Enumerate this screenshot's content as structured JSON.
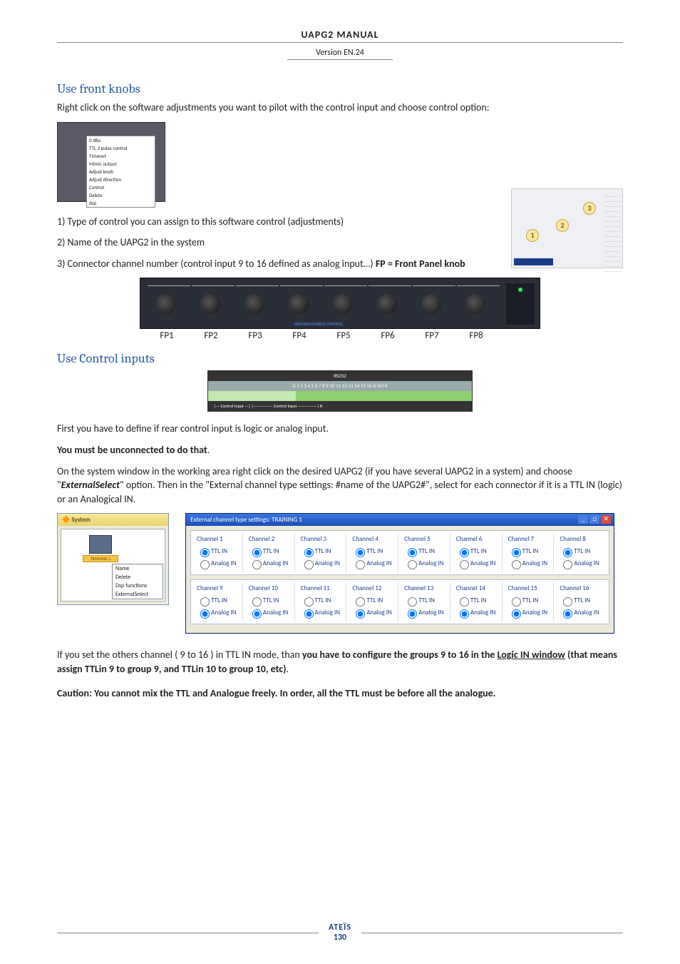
{
  "header": {
    "title": "UAPG2  MANUAL",
    "version": "Version EN.24"
  },
  "section1": {
    "heading": "Use front knobs",
    "intro": "Right click on the software adjustments you want to pilot with the control input and choose control option:",
    "ctx_sidebar1": "Delete",
    "ctx_sidebar2": "Dsp functions",
    "ctx_menu_items": [
      "0 dBu",
      "TTL 2 pulse control",
      "Timeout",
      "Mimic output",
      "Adjust knob",
      "Adjust direction",
      "Control",
      "Delete",
      "dsp"
    ],
    "bullets": [
      "1) Type of control you can assign to this software control (adjustments)",
      "2) Name of the UAPG2 in the system",
      "3) Connector channel number (control input 9 to 16 defined as analog input…) "
    ],
    "fp_bold": "FP = Front Panel knob",
    "right_callouts": [
      "1",
      "2",
      "3"
    ],
    "right_list": [
      "Ch 9",
      "Ch10",
      "Ch11",
      "Ch12",
      "Ch13",
      "Ch14",
      "Ch15",
      "Ch16",
      "FP1",
      "FP2",
      "FP3",
      "FP4",
      "FP5",
      "FP6",
      "FP7",
      "FP8"
    ],
    "knob_panel_label": "PROGRAMMABLE CONTROL",
    "fp_labels": [
      "FP1",
      "FP2",
      "FP3",
      "FP4",
      "FP5",
      "FP6",
      "FP7",
      "FP8"
    ]
  },
  "section2": {
    "heading": "Use Control inputs",
    "ci_top": "RS232",
    "ci_mid": "G   1   2   3   4   5      6   7   8   9  10 11 12 13 14 15 16   G   NO R",
    "ci_bot": "|— Control Input —|   |————— Control Input —————|        R",
    "para1": "First you have to define if rear control input is logic or analog input.",
    "para2_bold": "You must be unconnected to do that",
    "para2_rest": ".",
    "para3_pre": "On the system window in the working area right click on the desired UAPG2 (if you have several UAPG2 in a system) and choose \"",
    "para3_em": "ExternalSelect",
    "para3_post": "\"  option. Then in the \"External channel type settings: #name of the UAPG2#\", select for each connector if it is a TTL IN (logic) or an Analogical IN."
  },
  "system_window": {
    "title": "System",
    "node_label": "TRAINING 1",
    "ctx_items": [
      "Name",
      "Delete",
      "Dsp functions",
      "ExternalSelect"
    ]
  },
  "external_window": {
    "title": "External channel type settings:  TRAINING 1",
    "ttl_label": "TTL IN",
    "analog_label": "Analog IN",
    "row1": [
      {
        "n": "Channel 1",
        "mode": "ttl"
      },
      {
        "n": "Channel 2",
        "mode": "ttl"
      },
      {
        "n": "Channel 3",
        "mode": "ttl"
      },
      {
        "n": "Channel 4",
        "mode": "ttl"
      },
      {
        "n": "Channel 5",
        "mode": "ttl"
      },
      {
        "n": "Channel 6",
        "mode": "ttl"
      },
      {
        "n": "Channel 7",
        "mode": "ttl"
      },
      {
        "n": "Channel 8",
        "mode": "ttl"
      }
    ],
    "row2": [
      {
        "n": "Channel 9",
        "mode": "analog"
      },
      {
        "n": "Channel 10",
        "mode": "analog"
      },
      {
        "n": "Channel 11",
        "mode": "analog"
      },
      {
        "n": "Channel 12",
        "mode": "analog"
      },
      {
        "n": "Channel 13",
        "mode": "analog"
      },
      {
        "n": "Channel 14",
        "mode": "analog"
      },
      {
        "n": "Channel 15",
        "mode": "analog"
      },
      {
        "n": "Channel 16",
        "mode": "analog"
      }
    ]
  },
  "closing": {
    "p1_pre": "If you set the others channel ( 9 to 16 ) in TTL IN mode, than ",
    "p1_b1": "you have to configure the groups 9 to 16 in the ",
    "p1_u": "Logic IN window",
    "p1_b2": " (that means assign TTLin 9 to group 9, and TTLin 10 to group 10, etc)",
    "p1_post": ".",
    "p2": "Caution: You cannot mix the TTL and Analogue freely. In order, all the TTL must be before all the analogue."
  },
  "footer": {
    "brand": "ATEÏS",
    "page": "130"
  }
}
